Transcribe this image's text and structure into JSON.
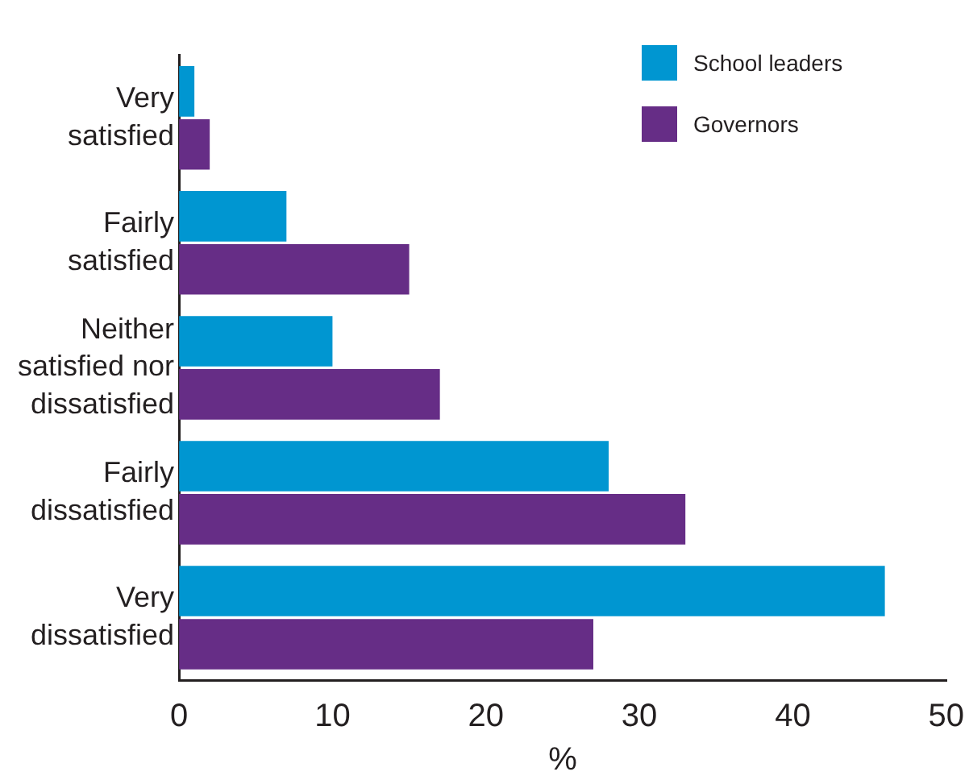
{
  "chart_data": {
    "type": "bar",
    "orientation": "horizontal",
    "xlabel": "%",
    "categories": [
      "Very satisfied",
      "Fairly satisfied",
      "Neither satisfied nor dissatisfied",
      "Fairly dissatisfied",
      "Very dissatisfied"
    ],
    "series": [
      {
        "name": "School leaders",
        "color": "#0096d1",
        "values": [
          1,
          7,
          10,
          28,
          46
        ]
      },
      {
        "name": "Governors",
        "color": "#662d86",
        "values": [
          2,
          15,
          17,
          33,
          27
        ]
      }
    ],
    "xlim": [
      0,
      50
    ],
    "xticks": [
      0,
      10,
      20,
      30,
      40,
      50
    ],
    "grid": false,
    "legend": "top right"
  }
}
